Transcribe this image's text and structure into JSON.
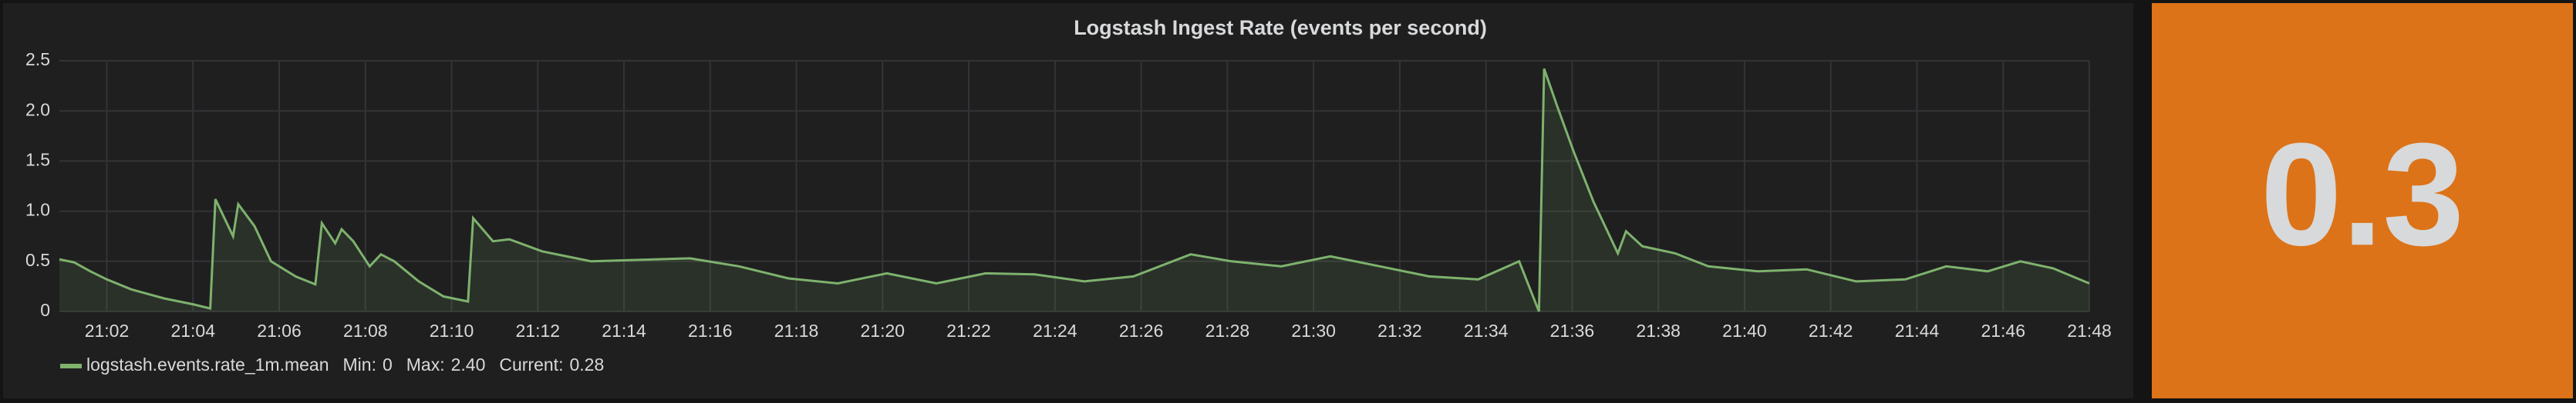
{
  "chart_data": {
    "type": "line",
    "title": "Logstash Ingest Rate (events per second)",
    "x": [
      1260.9,
      1261.24,
      1261.62,
      1262,
      1262.57,
      1263.33,
      1264.02,
      1264.4,
      1264.52,
      1264.93,
      1265.05,
      1265.43,
      1265.81,
      1266.38,
      1266.84,
      1266.99,
      1267.3,
      1267.45,
      1267.72,
      1268.1,
      1268.36,
      1268.67,
      1269.24,
      1269.81,
      1270.38,
      1270.5,
      1270.96,
      1271.34,
      1272.1,
      1273.24,
      1275.53,
      1276.67,
      1277.82,
      1278.96,
      1280.1,
      1281.25,
      1282.39,
      1283.53,
      1284.68,
      1285.82,
      1287.15,
      1288.1,
      1289.25,
      1290.39,
      1291.54,
      1292.68,
      1293.82,
      1294.77,
      1295.23,
      1295.35,
      1295.65,
      1296.03,
      1296.49,
      1297.06,
      1297.25,
      1297.63,
      1298.39,
      1299.16,
      1300.3,
      1301.44,
      1302.59,
      1303.73,
      1304.68,
      1305.64,
      1306.4,
      1307.16,
      1308
    ],
    "series": [
      {
        "name": "logstash.events.rate_1m.mean",
        "color": "#7eb26d",
        "values": [
          0.52,
          0.49,
          0.4,
          0.32,
          0.22,
          0.13,
          0.07,
          0.03,
          1.12,
          0.75,
          1.07,
          0.85,
          0.5,
          0.35,
          0.27,
          0.88,
          0.68,
          0.82,
          0.7,
          0.45,
          0.57,
          0.5,
          0.3,
          0.15,
          0.1,
          0.93,
          0.7,
          0.72,
          0.6,
          0.5,
          0.53,
          0.45,
          0.33,
          0.28,
          0.38,
          0.28,
          0.38,
          0.37,
          0.3,
          0.35,
          0.57,
          0.5,
          0.45,
          0.55,
          0.45,
          0.35,
          0.32,
          0.5,
          0,
          2.42,
          2.05,
          1.6,
          1.1,
          0.58,
          0.8,
          0.65,
          0.58,
          0.45,
          0.4,
          0.42,
          0.3,
          0.32,
          0.45,
          0.4,
          0.5,
          0.43,
          0.28
        ]
      }
    ],
    "xlim": [
      1260.9,
      1308
    ],
    "xticks": [
      {
        "value": 1262,
        "label": "21:02"
      },
      {
        "value": 1264,
        "label": "21:04"
      },
      {
        "value": 1266,
        "label": "21:06"
      },
      {
        "value": 1268,
        "label": "21:08"
      },
      {
        "value": 1270,
        "label": "21:10"
      },
      {
        "value": 1272,
        "label": "21:12"
      },
      {
        "value": 1274,
        "label": "21:14"
      },
      {
        "value": 1276,
        "label": "21:16"
      },
      {
        "value": 1278,
        "label": "21:18"
      },
      {
        "value": 1280,
        "label": "21:20"
      },
      {
        "value": 1282,
        "label": "21:22"
      },
      {
        "value": 1284,
        "label": "21:24"
      },
      {
        "value": 1286,
        "label": "21:26"
      },
      {
        "value": 1288,
        "label": "21:28"
      },
      {
        "value": 1290,
        "label": "21:30"
      },
      {
        "value": 1292,
        "label": "21:32"
      },
      {
        "value": 1294,
        "label": "21:34"
      },
      {
        "value": 1296,
        "label": "21:36"
      },
      {
        "value": 1298,
        "label": "21:38"
      },
      {
        "value": 1300,
        "label": "21:40"
      },
      {
        "value": 1302,
        "label": "21:42"
      },
      {
        "value": 1304,
        "label": "21:44"
      },
      {
        "value": 1306,
        "label": "21:46"
      },
      {
        "value": 1308,
        "label": "21:48"
      }
    ],
    "ylim": [
      0,
      2.5
    ],
    "yticks": [
      0,
      0.5,
      {
        "value": 1,
        "label": "1.0"
      },
      1.5,
      {
        "value": 2,
        "label": "2.0"
      },
      2.5
    ],
    "grid": true,
    "legend_stats": {
      "labels": [
        "Min:",
        "Max:",
        "Current:"
      ],
      "values": [
        0,
        2.4,
        0.28
      ],
      "value_labels": [
        "0",
        "2.40",
        "0.28"
      ]
    },
    "singlestat": {
      "value": 0.3,
      "color": "#dc7318"
    }
  }
}
